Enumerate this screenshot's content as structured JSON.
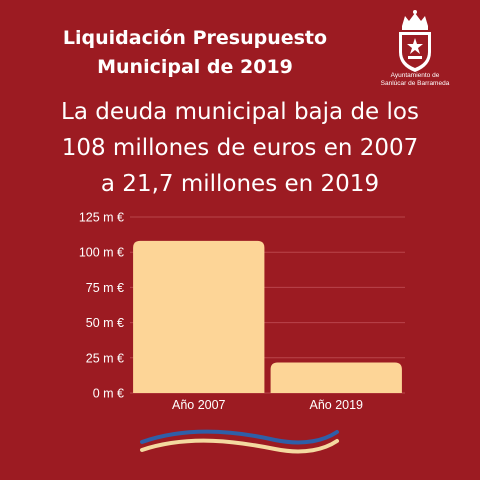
{
  "header": {
    "title_line1": "Liquidación Presupuesto",
    "title_line2": "Municipal de 2019"
  },
  "logo": {
    "caption_line1": "Ayuntamiento de",
    "caption_line2": "Sanlúcar de Barrameda"
  },
  "subtitle": {
    "line1": "La deuda municipal baja de los",
    "line2": "108 millones de euros en 2007",
    "line3": "a 21,7 millones en 2019"
  },
  "colors": {
    "background": "#9c1b22",
    "bar": "#fdd597",
    "grid": "#b9444b",
    "wave_blue": "#2f5fa8",
    "wave_cream": "#f4d9a0"
  },
  "chart_data": {
    "type": "bar",
    "title": "",
    "xlabel": "",
    "ylabel": "",
    "categories": [
      "Año 2007",
      "Año 2019"
    ],
    "values": [
      108,
      21.7
    ],
    "unit": "millones de euros",
    "yticks": [
      0,
      25,
      50,
      75,
      100,
      125
    ],
    "ytick_labels": [
      "0 m €",
      "25 m €",
      "50 m €",
      "75 m €",
      "100 m €",
      "125 m €"
    ],
    "ylim": [
      0,
      125
    ],
    "grid": true,
    "legend": "none"
  }
}
